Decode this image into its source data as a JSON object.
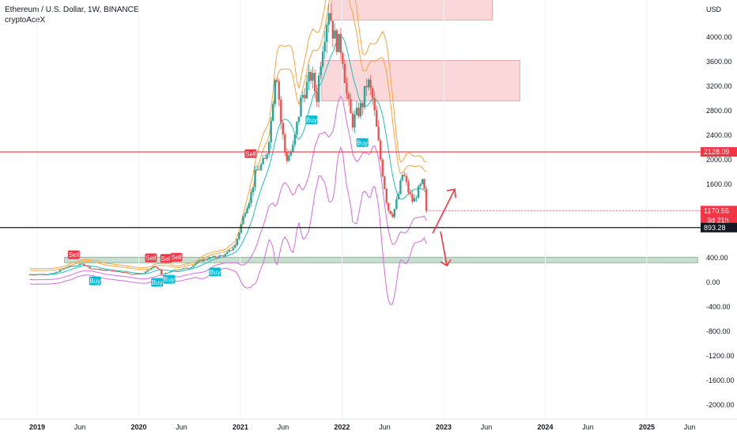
{
  "header": {
    "title": "Ethereum / U.S. Dollar, 1W, BINANCE",
    "subtitle": "cryptoAceX"
  },
  "chart_data": {
    "type": "candlestick",
    "currency": "USD",
    "yticks": [
      4000,
      3600,
      3200,
      2800,
      2400,
      2000,
      1600,
      400,
      0,
      -400,
      -800,
      -1200,
      -1600,
      -2000
    ],
    "ytick_labels": [
      "4000.00",
      "3600.00",
      "3200.00",
      "2800.00",
      "2400.00",
      "2000.00",
      "1600.00",
      "400.00",
      "0.00",
      "-400.00",
      "-800.00",
      "-1200.00",
      "-1600.00",
      "-2000.00"
    ],
    "ylim": [
      -2150,
      4550
    ],
    "xlim": [
      2018.92,
      2025.5
    ],
    "xticks": [
      {
        "t": 2019.0,
        "label": "2019",
        "bold": true
      },
      {
        "t": 2019.42,
        "label": "Jun",
        "bold": false
      },
      {
        "t": 2020.0,
        "label": "2020",
        "bold": true
      },
      {
        "t": 2020.42,
        "label": "Jun",
        "bold": false
      },
      {
        "t": 2021.0,
        "label": "2021",
        "bold": true
      },
      {
        "t": 2021.42,
        "label": "Jun",
        "bold": false
      },
      {
        "t": 2022.0,
        "label": "2022",
        "bold": true
      },
      {
        "t": 2022.42,
        "label": "Jun",
        "bold": false
      },
      {
        "t": 2023.0,
        "label": "2023",
        "bold": true
      },
      {
        "t": 2023.42,
        "label": "Jun",
        "bold": false
      },
      {
        "t": 2024.0,
        "label": "2024",
        "bold": true
      },
      {
        "t": 2024.42,
        "label": "Jun",
        "bold": false
      },
      {
        "t": 2025.0,
        "label": "2025",
        "bold": true
      },
      {
        "t": 2025.42,
        "label": "Jun",
        "bold": false
      }
    ],
    "close_path": [
      [
        2019.0,
        130
      ],
      [
        2019.15,
        140
      ],
      [
        2019.3,
        250
      ],
      [
        2019.45,
        300
      ],
      [
        2019.52,
        230
      ],
      [
        2019.65,
        200
      ],
      [
        2019.8,
        180
      ],
      [
        2019.95,
        130
      ],
      [
        2020.05,
        150
      ],
      [
        2020.15,
        260
      ],
      [
        2020.2,
        220
      ],
      [
        2020.22,
        120
      ],
      [
        2020.35,
        200
      ],
      [
        2020.5,
        240
      ],
      [
        2020.6,
        350
      ],
      [
        2020.7,
        400
      ],
      [
        2020.85,
        450
      ],
      [
        2020.95,
        600
      ],
      [
        2021.05,
        1200
      ],
      [
        2021.1,
        1400
      ],
      [
        2021.15,
        1800
      ],
      [
        2021.25,
        2000
      ],
      [
        2021.3,
        2600
      ],
      [
        2021.35,
        3600
      ],
      [
        2021.4,
        2600
      ],
      [
        2021.45,
        2000
      ],
      [
        2021.52,
        2200
      ],
      [
        2021.6,
        3000
      ],
      [
        2021.7,
        3400
      ],
      [
        2021.75,
        3000
      ],
      [
        2021.8,
        3800
      ],
      [
        2021.87,
        4500
      ],
      [
        2021.92,
        4000
      ],
      [
        2022.0,
        3800
      ],
      [
        2022.05,
        3000
      ],
      [
        2022.1,
        2600
      ],
      [
        2022.2,
        2900
      ],
      [
        2022.25,
        3300
      ],
      [
        2022.3,
        3000
      ],
      [
        2022.38,
        2000
      ],
      [
        2022.45,
        1200
      ],
      [
        2022.5,
        1100
      ],
      [
        2022.55,
        1400
      ],
      [
        2022.6,
        1800
      ],
      [
        2022.65,
        1500
      ],
      [
        2022.7,
        1300
      ],
      [
        2022.75,
        1500
      ],
      [
        2022.8,
        1650
      ],
      [
        2022.83,
        1170.55
      ]
    ],
    "levels": [
      {
        "name": "resistance",
        "value": 2128.09,
        "label": "2128.09",
        "color": "#f23645"
      },
      {
        "name": "current_price",
        "value": 1170.55,
        "label": "1170.55",
        "countdown": "3d 21h",
        "color": "#f23645"
      },
      {
        "name": "support",
        "value": 893.28,
        "label": "893.28",
        "color": "#131722"
      }
    ],
    "zones": [
      {
        "name": "supply-zone-top",
        "t0": 2021.9,
        "t1": 2023.48,
        "y0": 4280,
        "y1": 4650,
        "color": "#f8c9cc"
      },
      {
        "name": "supply-zone-mid",
        "t0": 2021.8,
        "t1": 2023.75,
        "y0": 2960,
        "y1": 3620,
        "color": "#f8c9cc"
      },
      {
        "name": "demand-zone",
        "t0": 2019.27,
        "t1": 2025.5,
        "y0": 320,
        "y1": 410,
        "color": "#b5d3bf"
      }
    ],
    "signals": [
      {
        "type": "Sell",
        "t": 2019.36,
        "y": 450
      },
      {
        "type": "Buy",
        "t": 2019.57,
        "y": 25
      },
      {
        "type": "Sell",
        "t": 2020.12,
        "y": 400
      },
      {
        "type": "Buy",
        "t": 2020.18,
        "y": 0
      },
      {
        "type": "Sell",
        "t": 2020.27,
        "y": 390
      },
      {
        "type": "Sell",
        "t": 2020.37,
        "y": 410
      },
      {
        "type": "Buy",
        "t": 2020.3,
        "y": 50
      },
      {
        "type": "Buy",
        "t": 2020.75,
        "y": 170
      },
      {
        "type": "Sell",
        "t": 2021.1,
        "y": 2100
      },
      {
        "type": "Buy",
        "t": 2021.7,
        "y": 2650
      },
      {
        "type": "Buy",
        "t": 2022.2,
        "y": 2280
      }
    ],
    "arrows": [
      {
        "name": "up-arrow",
        "color": "#f23645",
        "direction": "up"
      },
      {
        "name": "down-arrow",
        "color": "#f23645",
        "direction": "down"
      }
    ],
    "colors": {
      "up": "#26a69a",
      "down": "#ef5350",
      "basis": "#1fbfb8",
      "outer_band": "#f7a541",
      "lower_band": "#d76bdc",
      "signal_sell": "#f23645",
      "signal_buy": "#00bcd4"
    }
  }
}
